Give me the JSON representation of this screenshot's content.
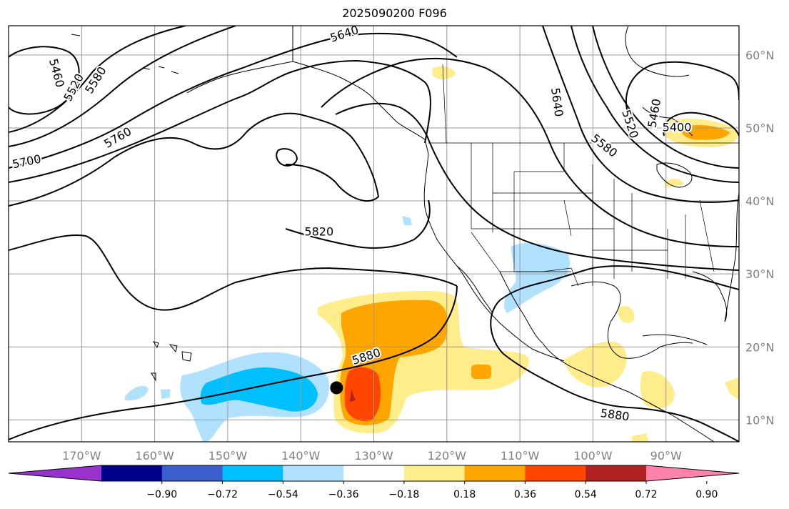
{
  "title": "2025090200 F096",
  "map": {
    "projection": "PlateCarree",
    "lon_range": [
      -180,
      -80
    ],
    "lat_range": [
      7,
      64
    ],
    "lon_ticks": [
      {
        "lon": -170,
        "label": "170°W"
      },
      {
        "lon": -160,
        "label": "160°W"
      },
      {
        "lon": -150,
        "label": "150°W"
      },
      {
        "lon": -140,
        "label": "140°W"
      },
      {
        "lon": -130,
        "label": "130°W"
      },
      {
        "lon": -120,
        "label": "120°W"
      },
      {
        "lon": -110,
        "label": "110°W"
      },
      {
        "lon": -100,
        "label": "100°W"
      },
      {
        "lon": -90,
        "label": "90°W"
      }
    ],
    "lat_ticks": [
      {
        "lat": 60,
        "label": "60°N"
      },
      {
        "lat": 50,
        "label": "50°N"
      },
      {
        "lat": 40,
        "label": "40°N"
      },
      {
        "lat": 30,
        "label": "30°N"
      },
      {
        "lat": 20,
        "label": "20°N"
      },
      {
        "lat": 10,
        "label": "10°N"
      }
    ],
    "grid": true,
    "contour_labels": [
      {
        "text": "5640",
        "lon": -134,
        "lat": 62.8,
        "rot": -18
      },
      {
        "text": "5460",
        "lon": -173.5,
        "lat": 57.5,
        "rot": 75
      },
      {
        "text": "5520",
        "lon": -171,
        "lat": 55.5,
        "rot": -62
      },
      {
        "text": "5580",
        "lon": -168,
        "lat": 56.5,
        "rot": -58
      },
      {
        "text": "5760",
        "lon": -165,
        "lat": 48.6,
        "rot": -30
      },
      {
        "text": "5700",
        "lon": -177.5,
        "lat": 45.3,
        "rot": -12
      },
      {
        "text": "5820",
        "lon": -137.5,
        "lat": 35.7,
        "rot": 0
      },
      {
        "text": "5880",
        "lon": -131,
        "lat": 18.6,
        "rot": -18
      },
      {
        "text": "5880",
        "lon": -97,
        "lat": 10.6,
        "rot": 8
      },
      {
        "text": "5640",
        "lon": -105,
        "lat": 53.5,
        "rot": 82
      },
      {
        "text": "5520",
        "lon": -95,
        "lat": 50.5,
        "rot": 72
      },
      {
        "text": "5460",
        "lon": -91.5,
        "lat": 52,
        "rot": -80
      },
      {
        "text": "5580",
        "lon": -98.5,
        "lat": 47.5,
        "rot": 38
      },
      {
        "text": "5400",
        "lon": -88.5,
        "lat": 50,
        "rot": 0
      }
    ],
    "storm_marker": {
      "lon": -135.1,
      "lat": 14.4
    }
  },
  "colorbar": {
    "colors": [
      "#9932cc",
      "#00008b",
      "#3a5fcd",
      "#00bfff",
      "#b0e2ff",
      "#ffffff",
      "#ffec8b",
      "#ffa500",
      "#ff4500",
      "#b22222",
      "#ff82ab"
    ],
    "labels": [
      "−0.90",
      "−0.72",
      "−0.54",
      "−0.36",
      "−0.18",
      "0.18",
      "0.36",
      "0.54",
      "0.72",
      "0.90"
    ]
  }
}
